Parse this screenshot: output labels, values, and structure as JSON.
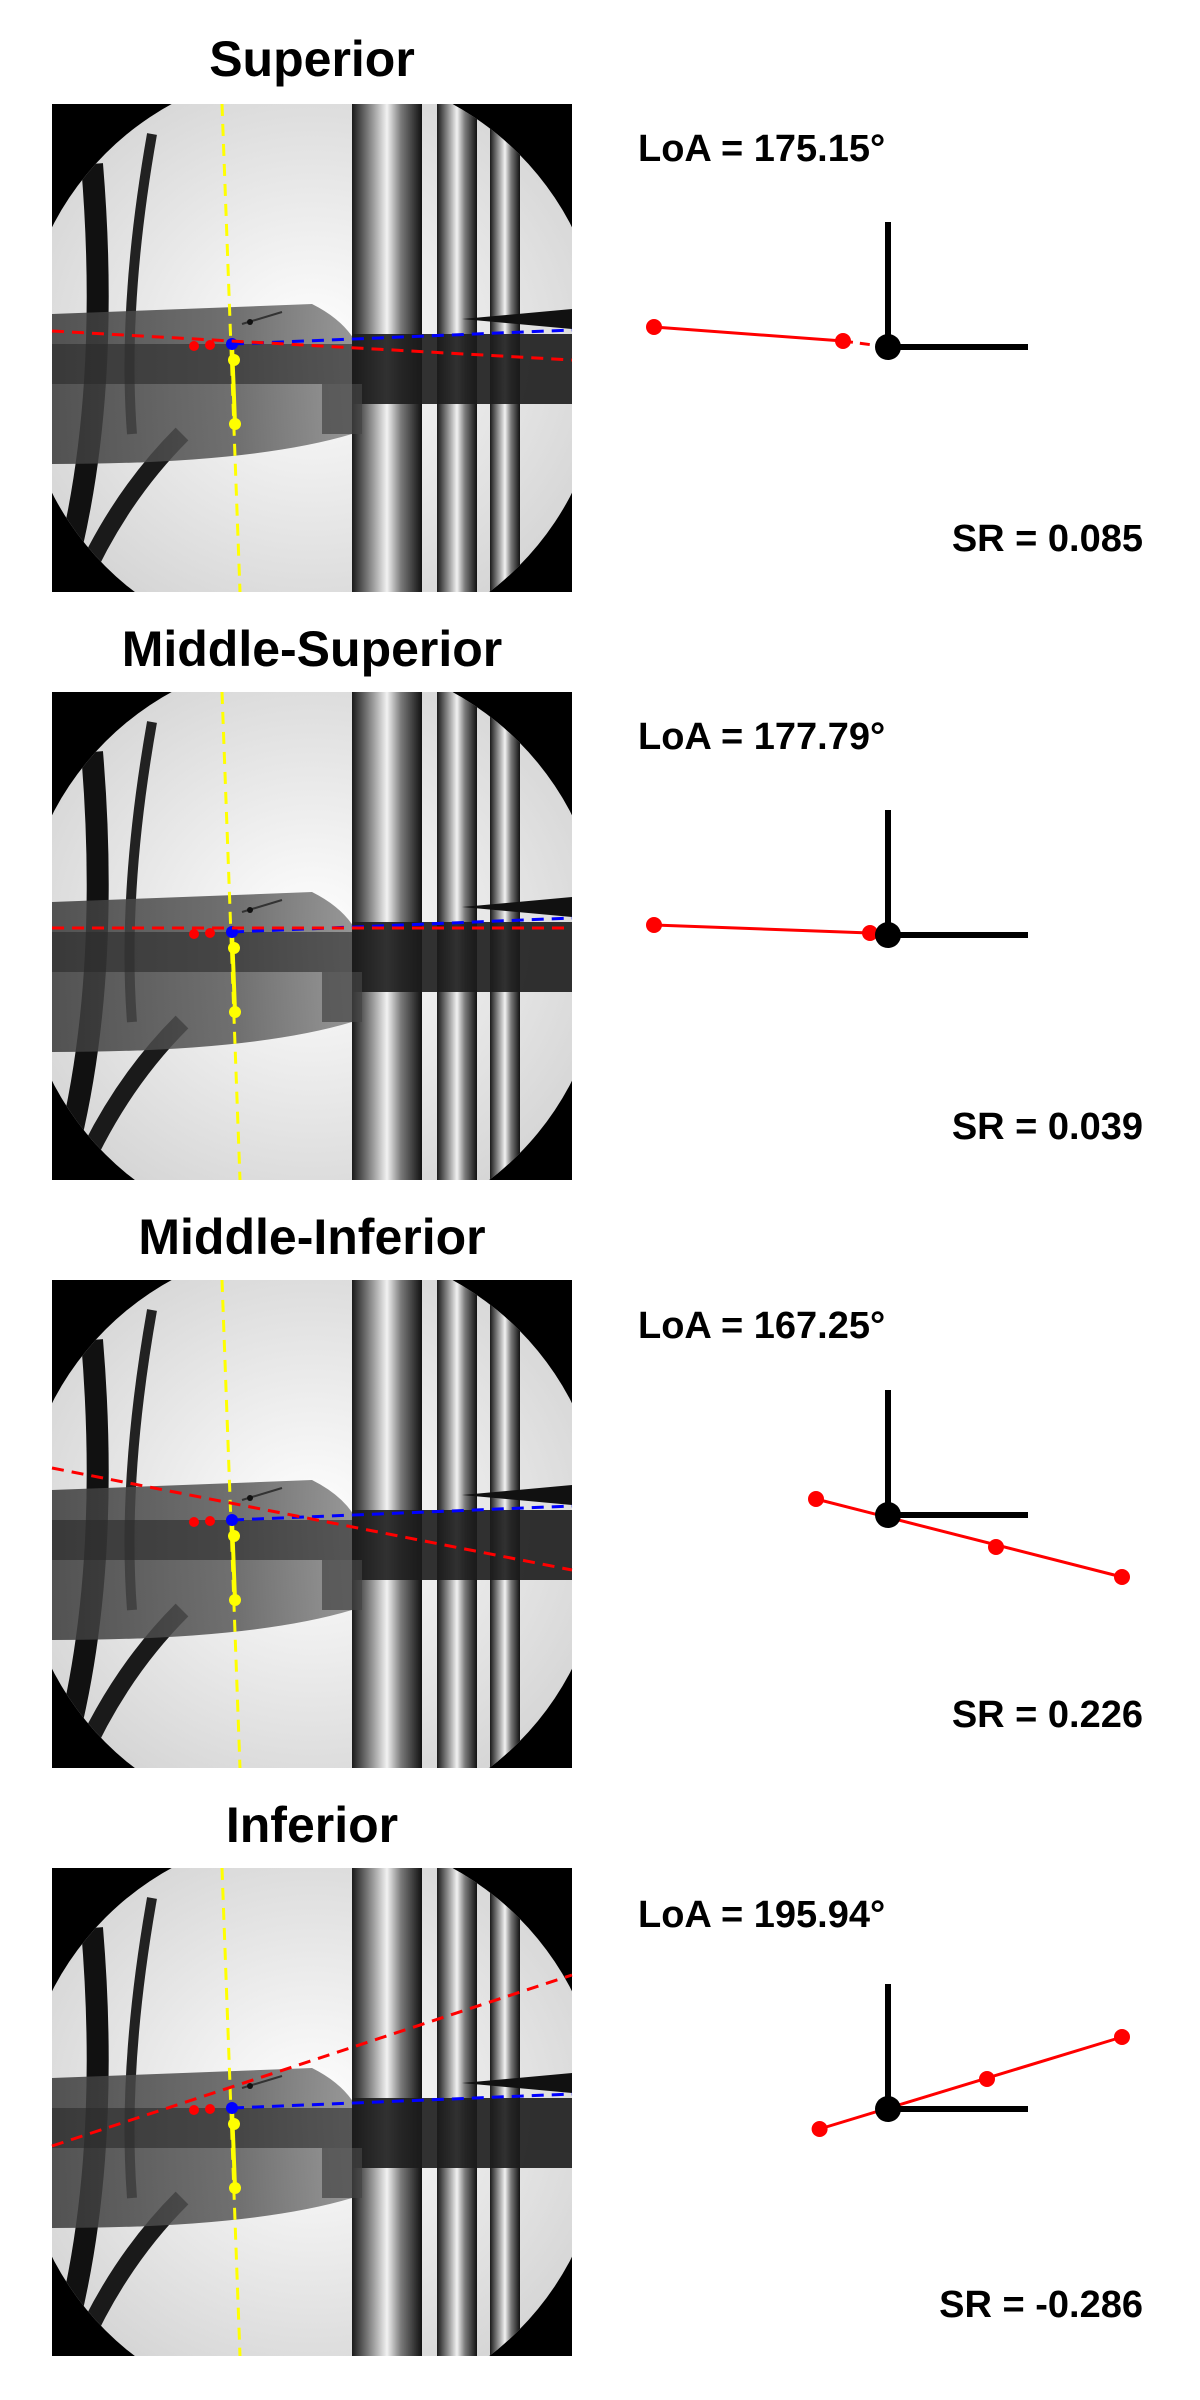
{
  "panels": [
    {
      "title": "Superior",
      "loa_label": "LoA = 175.15°",
      "sr_label": "SR = 0.085",
      "loa_deg": 175.15,
      "sr": 0.085,
      "markers": {
        "red": [
          [
            -1.3,
            0.1
          ],
          [
            -0.25,
            0.03
          ]
        ],
        "red_dashed_to_origin": true
      }
    },
    {
      "title": "Middle-Superior",
      "loa_label": "LoA = 177.79°",
      "sr_label": "SR = 0.039",
      "loa_deg": 177.79,
      "sr": 0.039,
      "markers": {
        "red": [
          [
            -1.3,
            0.05
          ],
          [
            -0.1,
            0.01
          ]
        ],
        "red_dashed_to_origin": false
      }
    },
    {
      "title": "Middle-Inferior",
      "loa_label": "LoA = 167.25°",
      "sr_label": "SR = 0.226",
      "loa_deg": 167.25,
      "sr": 0.226,
      "markers": {
        "red": [
          [
            -0.4,
            0.08
          ],
          [
            0.6,
            -0.16
          ],
          [
            1.3,
            -0.31
          ]
        ],
        "red_dashed_to_origin": false
      }
    },
    {
      "title": "Inferior",
      "loa_label": "LoA = 195.94°",
      "sr_label": "SR = -0.286",
      "loa_deg": 195.94,
      "sr": -0.286,
      "markers": {
        "red": [
          [
            -0.38,
            -0.1
          ],
          [
            0.55,
            0.15
          ],
          [
            1.3,
            0.36
          ]
        ],
        "red_dashed_to_origin": false
      }
    }
  ],
  "colors": {
    "red": "#ff0000",
    "yellow": "#ffff00",
    "blue": "#0000ff",
    "black": "#000000"
  }
}
